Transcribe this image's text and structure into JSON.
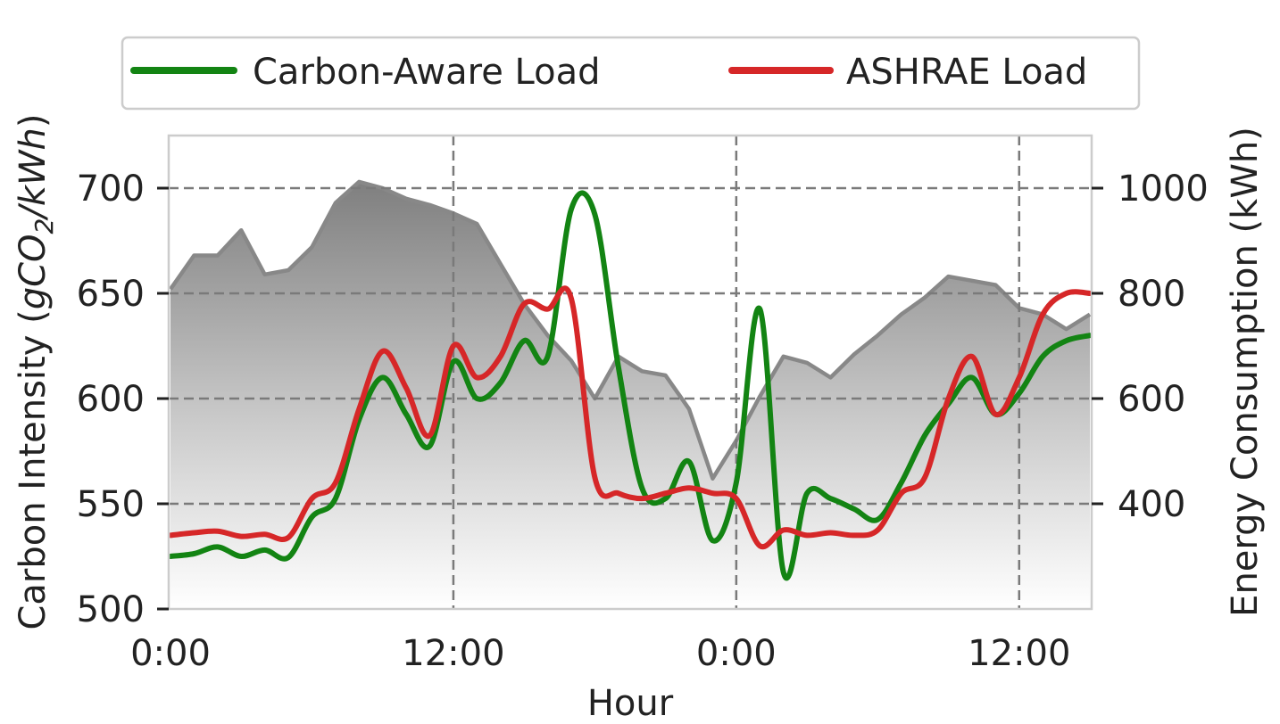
{
  "chart_data": {
    "type": "line",
    "xlabel": "Hour",
    "ylabel_left": "Carbon Intensity (gCO₂/kWh)",
    "ylabel_left_parts": [
      "Carbon Intensity (",
      "gCO",
      "2",
      "/kWh",
      ")"
    ],
    "ylabel_right": "Energy Consumption (kWh)",
    "x_range_hours": [
      0,
      39
    ],
    "x_ticks": [
      {
        "hour": 0,
        "label": "0:00"
      },
      {
        "hour": 12,
        "label": "12:00"
      },
      {
        "hour": 24,
        "label": "0:00"
      },
      {
        "hour": 36,
        "label": "12:00"
      }
    ],
    "y_left_range": [
      500,
      725
    ],
    "y_left_ticks": [
      {
        "value": 500,
        "label": "500"
      },
      {
        "value": 550,
        "label": "550"
      },
      {
        "value": 600,
        "label": "600"
      },
      {
        "value": 650,
        "label": "650"
      },
      {
        "value": 700,
        "label": "700"
      }
    ],
    "y_right_range": [
      200,
      1100
    ],
    "y_right_ticks": [
      {
        "value": 400,
        "label": "400"
      },
      {
        "value": 600,
        "label": "600"
      },
      {
        "value": 800,
        "label": "800"
      },
      {
        "value": 1000,
        "label": "1000"
      }
    ],
    "grid": true,
    "legend_position": "top",
    "carbon_intensity": {
      "axis": "left",
      "color": "#888888",
      "x": [
        0,
        1,
        2,
        3,
        4,
        5,
        6,
        7,
        8,
        9,
        10,
        11,
        12,
        13,
        14,
        15,
        16,
        17,
        18,
        19,
        20,
        21,
        22,
        23,
        24,
        25,
        26,
        27,
        28,
        29,
        30,
        31,
        32,
        33,
        34,
        35,
        36,
        37,
        38,
        39
      ],
      "y": [
        652,
        668,
        668,
        680,
        659,
        661,
        672,
        693,
        703,
        700,
        695,
        692,
        688,
        683,
        664,
        645,
        630,
        618,
        600,
        620,
        613,
        611,
        595,
        562,
        580,
        601,
        620,
        617,
        610,
        621,
        630,
        640,
        648,
        658,
        656,
        654,
        643,
        640,
        633,
        640
      ]
    },
    "series": [
      {
        "name": "Carbon-Aware Load",
        "color": "#138413",
        "axis": "right",
        "x": [
          0,
          1,
          2,
          3,
          4,
          5,
          6,
          7,
          8,
          9,
          10,
          11,
          12,
          13,
          14,
          15,
          16,
          17,
          18,
          19,
          20,
          21,
          22,
          23,
          24,
          25,
          26,
          27,
          28,
          29,
          30,
          31,
          32,
          33,
          34,
          35,
          36,
          37,
          38,
          39
        ],
        "y": [
          300,
          305,
          318,
          300,
          312,
          298,
          375,
          410,
          560,
          640,
          570,
          510,
          670,
          600,
          630,
          710,
          680,
          960,
          950,
          660,
          430,
          410,
          480,
          330,
          440,
          770,
          270,
          420,
          410,
          390,
          370,
          440,
          530,
          590,
          640,
          570,
          610,
          680,
          710,
          720
        ]
      },
      {
        "name": "ASHRAE Load",
        "color": "#d62728",
        "axis": "right",
        "x": [
          0,
          1,
          2,
          3,
          4,
          5,
          6,
          7,
          8,
          9,
          10,
          11,
          12,
          13,
          14,
          15,
          16,
          17,
          18,
          19,
          20,
          21,
          22,
          23,
          24,
          25,
          26,
          27,
          28,
          29,
          30,
          31,
          32,
          33,
          34,
          35,
          36,
          37,
          38,
          39
        ],
        "y": [
          340,
          345,
          348,
          338,
          342,
          336,
          410,
          440,
          580,
          690,
          620,
          530,
          700,
          640,
          680,
          780,
          770,
          790,
          450,
          420,
          410,
          420,
          430,
          420,
          410,
          320,
          350,
          340,
          345,
          340,
          350,
          420,
          450,
          600,
          680,
          570,
          640,
          760,
          800,
          800
        ]
      }
    ]
  }
}
